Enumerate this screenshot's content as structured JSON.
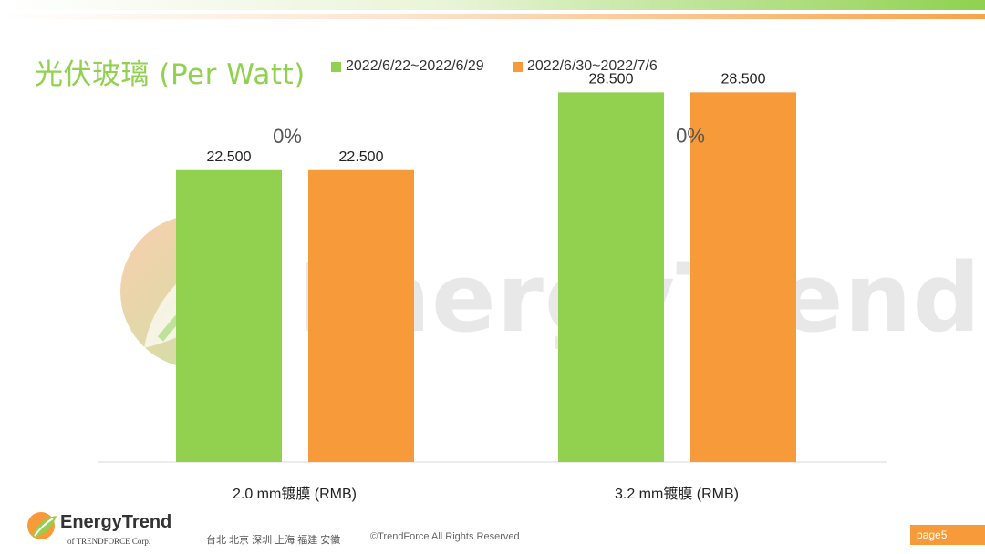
{
  "header": {
    "title": "光伏玻璃 (Per Watt)"
  },
  "legend": [
    {
      "label": "2022/6/22~2022/6/29",
      "color": "#92d050"
    },
    {
      "label": "2022/6/30~2022/7/6",
      "color": "#f79a3a"
    }
  ],
  "chart_data": {
    "type": "bar",
    "categories": [
      "2.0 mm镀膜 (RMB)",
      "3.2 mm镀膜 (RMB)"
    ],
    "series": [
      {
        "name": "2022/6/22~2022/6/29",
        "values": [
          22.5,
          28.5
        ],
        "labels": [
          "22.500",
          "28.500"
        ],
        "color": "#92d050"
      },
      {
        "name": "2022/6/30~2022/7/6",
        "values": [
          22.5,
          28.5
        ],
        "labels": [
          "22.500",
          "28.500"
        ],
        "color": "#f79a3a"
      }
    ],
    "change_labels": [
      "0%",
      "0%"
    ],
    "ylim": [
      0,
      30
    ],
    "grid": false,
    "legend_position": "top"
  },
  "watermark": {
    "text": "EnergyTrend"
  },
  "footer": {
    "logo_name": "EnergyTrend",
    "logo_sub": "of TRENDFORCE Corp.",
    "offices": "台北  北京  深圳  上海  福建  安徽",
    "copyright": "©TrendForce All Rights Reserved",
    "page": "page5"
  }
}
